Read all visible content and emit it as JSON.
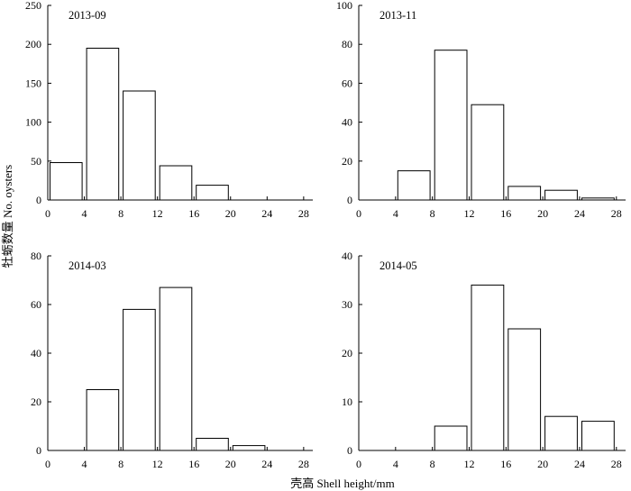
{
  "figure": {
    "ylabel": "牡蛎数量 No. oysters",
    "xlabel": "壳高 Shell height/mm"
  },
  "chart_data": [
    {
      "type": "bar",
      "title": "2013-09",
      "x_ticks": [
        0,
        4,
        8,
        12,
        16,
        20,
        24,
        28
      ],
      "xlim": [
        0,
        29
      ],
      "ylim": [
        0,
        250
      ],
      "y_ticks": [
        0,
        50,
        100,
        150,
        200,
        250
      ],
      "bin_width": 4,
      "bins": [
        {
          "from": 0,
          "to": 4,
          "value": 48
        },
        {
          "from": 4,
          "to": 8,
          "value": 195
        },
        {
          "from": 8,
          "to": 12,
          "value": 140
        },
        {
          "from": 12,
          "to": 16,
          "value": 44
        },
        {
          "from": 16,
          "to": 20,
          "value": 19
        }
      ],
      "grid": false
    },
    {
      "type": "bar",
      "title": "2013-11",
      "x_ticks": [
        0,
        4,
        8,
        12,
        16,
        20,
        24,
        28
      ],
      "xlim": [
        0,
        29
      ],
      "ylim": [
        0,
        100
      ],
      "y_ticks": [
        0,
        20,
        40,
        60,
        80,
        100
      ],
      "bin_width": 4,
      "bins": [
        {
          "from": 4,
          "to": 8,
          "value": 15
        },
        {
          "from": 8,
          "to": 12,
          "value": 77
        },
        {
          "from": 12,
          "to": 16,
          "value": 49
        },
        {
          "from": 16,
          "to": 20,
          "value": 7
        },
        {
          "from": 20,
          "to": 24,
          "value": 5
        },
        {
          "from": 24,
          "to": 28,
          "value": 1
        }
      ],
      "grid": false
    },
    {
      "type": "bar",
      "title": "2014-03",
      "x_ticks": [
        0,
        4,
        8,
        12,
        16,
        20,
        24,
        28
      ],
      "xlim": [
        0,
        29
      ],
      "ylim": [
        0,
        80
      ],
      "y_ticks": [
        0,
        20,
        40,
        60,
        80
      ],
      "bin_width": 4,
      "bins": [
        {
          "from": 4,
          "to": 8,
          "value": 25
        },
        {
          "from": 8,
          "to": 12,
          "value": 58
        },
        {
          "from": 12,
          "to": 16,
          "value": 67
        },
        {
          "from": 16,
          "to": 20,
          "value": 5
        },
        {
          "from": 20,
          "to": 24,
          "value": 2
        }
      ],
      "grid": false
    },
    {
      "type": "bar",
      "title": "2014-05",
      "x_ticks": [
        0,
        4,
        8,
        12,
        16,
        20,
        24,
        28
      ],
      "xlim": [
        0,
        29
      ],
      "ylim": [
        0,
        40
      ],
      "y_ticks": [
        0,
        10,
        20,
        30,
        40
      ],
      "bin_width": 4,
      "bins": [
        {
          "from": 8,
          "to": 12,
          "value": 5
        },
        {
          "from": 12,
          "to": 16,
          "value": 34
        },
        {
          "from": 16,
          "to": 20,
          "value": 25
        },
        {
          "from": 20,
          "to": 24,
          "value": 7
        },
        {
          "from": 24,
          "to": 28,
          "value": 6
        }
      ],
      "grid": false
    }
  ]
}
